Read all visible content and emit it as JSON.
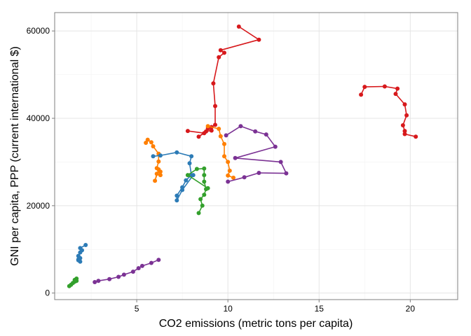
{
  "chart_data": {
    "type": "line",
    "xlabel": "CO2 emissions (metric tons per capita)",
    "ylabel": "GNI per capita, PPP (current international $)",
    "xlim": [
      0.5,
      22.6
    ],
    "ylim": [
      -1500,
      64200
    ],
    "xticks": [
      5,
      10,
      15,
      20
    ],
    "yticks": [
      0,
      20000,
      40000,
      60000
    ],
    "ytick_labels": [
      "0",
      "20000",
      "40000",
      "60000"
    ],
    "grid": true,
    "legend": "none",
    "series": [
      {
        "color": "#d7191c",
        "points": [
          [
            10.6,
            61000
          ],
          [
            11.7,
            58000
          ],
          [
            9.6,
            55600
          ],
          [
            9.8,
            55000
          ],
          [
            9.5,
            54000
          ],
          [
            9.2,
            48000
          ],
          [
            9.3,
            42800
          ],
          [
            9.3,
            38500
          ],
          [
            9.1,
            38000
          ],
          [
            8.9,
            37700
          ],
          [
            9.1,
            37200
          ],
          [
            8.8,
            37000
          ],
          [
            8.4,
            35800
          ],
          [
            8.7,
            36600
          ],
          [
            7.8,
            37100
          ]
        ]
      },
      {
        "color": "#d7191c",
        "points": [
          [
            17.3,
            45400
          ],
          [
            17.5,
            47200
          ],
          [
            18.6,
            47300
          ],
          [
            19.3,
            46800
          ],
          [
            19.2,
            45600
          ],
          [
            19.7,
            43200
          ],
          [
            19.8,
            40700
          ],
          [
            19.6,
            38400
          ],
          [
            19.7,
            37100
          ],
          [
            19.7,
            36400
          ],
          [
            20.3,
            35800
          ]
        ]
      },
      {
        "color": "#ff7f00",
        "points": [
          [
            5.5,
            34400
          ],
          [
            5.6,
            35100
          ],
          [
            5.8,
            34500
          ],
          [
            5.9,
            33600
          ],
          [
            6.2,
            31900
          ],
          [
            6.2,
            30100
          ],
          [
            6.1,
            28600
          ],
          [
            6.3,
            27800
          ],
          [
            6.1,
            27300
          ],
          [
            6.0,
            25700
          ],
          [
            6.2,
            28300
          ],
          [
            6.3,
            27000
          ]
        ]
      },
      {
        "color": "#ff7f00",
        "points": [
          [
            8.9,
            38200
          ],
          [
            9.5,
            37600
          ],
          [
            9.6,
            35900
          ],
          [
            9.8,
            34100
          ],
          [
            9.8,
            31300
          ],
          [
            10.0,
            30000
          ],
          [
            10.1,
            28000
          ],
          [
            10.0,
            26900
          ],
          [
            10.3,
            26400
          ]
        ]
      },
      {
        "color": "#2c7bb6",
        "points": [
          [
            5.9,
            31300
          ],
          [
            6.3,
            31500
          ],
          [
            7.2,
            32200
          ],
          [
            8.0,
            31300
          ],
          [
            7.9,
            29700
          ],
          [
            8.0,
            27000
          ],
          [
            7.7,
            25800
          ],
          [
            7.5,
            24200
          ],
          [
            7.2,
            22300
          ],
          [
            7.2,
            21200
          ],
          [
            7.5,
            23600
          ],
          [
            8.1,
            27000
          ]
        ]
      },
      {
        "color": "#2c7bb6",
        "points": [
          [
            2.2,
            11000
          ],
          [
            1.9,
            10300
          ],
          [
            2.0,
            9800
          ],
          [
            1.9,
            9300
          ],
          [
            1.8,
            8500
          ],
          [
            1.8,
            7700
          ],
          [
            1.9,
            7200
          ],
          [
            1.8,
            7500
          ],
          [
            1.9,
            8000
          ]
        ]
      },
      {
        "color": "#33a02c",
        "points": [
          [
            8.4,
            18300
          ],
          [
            8.6,
            20000
          ],
          [
            8.5,
            21500
          ],
          [
            8.7,
            22500
          ],
          [
            8.8,
            23800
          ],
          [
            8.7,
            25500
          ],
          [
            8.7,
            27000
          ],
          [
            8.7,
            28500
          ],
          [
            8.3,
            28400
          ],
          [
            7.8,
            27000
          ],
          [
            8.9,
            24000
          ]
        ]
      },
      {
        "color": "#33a02c",
        "points": [
          [
            1.3,
            1600
          ],
          [
            1.4,
            1900
          ],
          [
            1.5,
            2300
          ],
          [
            1.6,
            2600
          ],
          [
            1.7,
            2800
          ],
          [
            1.7,
            3300
          ],
          [
            1.6,
            3000
          ]
        ]
      },
      {
        "color": "#7b3294",
        "points": [
          [
            9.9,
            36100
          ],
          [
            10.7,
            38200
          ],
          [
            11.5,
            37000
          ],
          [
            12.1,
            36300
          ],
          [
            12.6,
            33500
          ],
          [
            10.4,
            30900
          ],
          [
            12.9,
            30000
          ],
          [
            13.2,
            27400
          ],
          [
            11.7,
            27500
          ],
          [
            10.9,
            26500
          ],
          [
            10.0,
            25500
          ]
        ]
      },
      {
        "color": "#7b3294",
        "points": [
          [
            2.7,
            2500
          ],
          [
            2.9,
            2800
          ],
          [
            3.5,
            3200
          ],
          [
            4.0,
            3700
          ],
          [
            4.3,
            4200
          ],
          [
            4.8,
            4900
          ],
          [
            5.1,
            5700
          ],
          [
            5.3,
            6200
          ],
          [
            5.8,
            6900
          ],
          [
            6.2,
            7600
          ]
        ]
      }
    ]
  }
}
